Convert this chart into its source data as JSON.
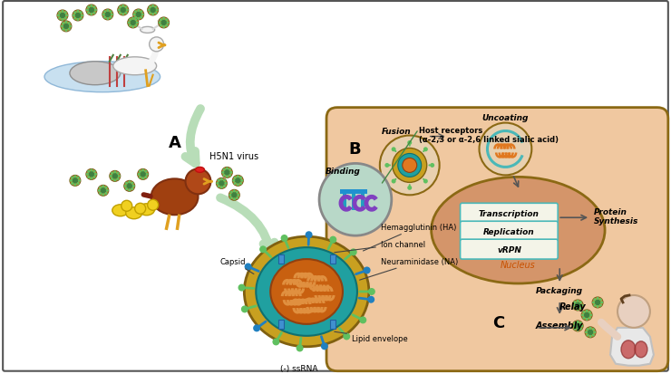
{
  "bg_color": "#ffffff",
  "border_color": "#555555",
  "cell_bg": "#f0c8a0",
  "cell_border": "#8B6914",
  "nucleus_bg": "#d4956a",
  "nucleus_border": "#8B6914",
  "teal_color": "#4ab8b8",
  "arrow_color": "#555555",
  "green_arrow": "#b8ddb8",
  "label_A": "A",
  "label_B": "B",
  "label_C": "C",
  "h5n1_label": "H5N1 virus",
  "binding_label": "Binding",
  "fusion_label": "Fusion",
  "uncoating_label": "Uncoating",
  "transcription_label": "Transcription",
  "replication_label": "Replication",
  "vrpn_label": "vRPN",
  "nucleus_label": "Nucleus",
  "protein_synthesis_label": "Protein\nSynthesis",
  "packaging_label": "Packaging",
  "assembly_label": "Assembly",
  "relay_label": "Relay",
  "host_receptors_label": "Host receptors\n(α-2,3 or α-2,6 linked sialic acid)",
  "hemagglutinin_label": "Hemagglutinin (HA)",
  "ion_channel_label": "Ion channel",
  "neuraminidase_label": "Neuraminidase (NA)",
  "capsid_label": "Capsid",
  "lipid_envelope_label": "Lipid envelope",
  "ssrna_label": "(-) ssRNA",
  "virus_color_outer": "#c8a020",
  "virus_color_mid": "#20a0a0",
  "virus_color_inner": "#e07820",
  "virus_spike_color": "#60c060",
  "virus_spike2_color": "#2080c0"
}
